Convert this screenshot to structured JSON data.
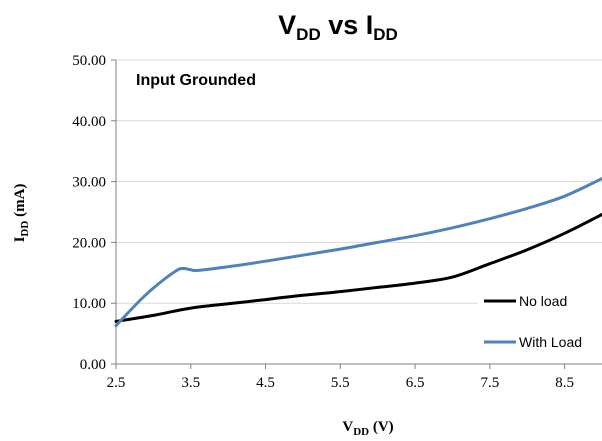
{
  "chart_data": {
    "type": "line",
    "title": {
      "main_left": "V",
      "sub_left": "DD",
      "middle": " vs I",
      "sub_right": "DD"
    },
    "xlabel": {
      "main": "V",
      "sub": "DD",
      "rest": " (V)"
    },
    "ylabel": {
      "main": "I",
      "sub": "DD",
      "rest": " (mA)"
    },
    "annotation": "Input Grounded",
    "xlim": [
      2.5,
      9.0
    ],
    "ylim": [
      0,
      50
    ],
    "x_ticks": [
      2.5,
      3.5,
      4.5,
      5.5,
      6.5,
      7.5,
      8.5
    ],
    "x_tick_labels": [
      "2.5",
      "3.5",
      "4.5",
      "5.5",
      "6.5",
      "7.5",
      "8.5"
    ],
    "y_ticks": [
      0,
      10,
      20,
      30,
      40,
      50
    ],
    "y_tick_labels": [
      "0.00",
      "10.00",
      "20.00",
      "30.00",
      "40.00",
      "50.00"
    ],
    "grid": true,
    "legend_placement": "bottom-right",
    "series": [
      {
        "name": "No load",
        "color": "#000000",
        "x": [
          2.5,
          3.0,
          3.5,
          4.0,
          4.5,
          5.0,
          5.5,
          6.0,
          6.5,
          7.0,
          7.5,
          8.0,
          8.5,
          9.0
        ],
        "y": [
          7.0,
          8.0,
          9.2,
          9.9,
          10.6,
          11.3,
          11.9,
          12.6,
          13.3,
          14.3,
          16.5,
          18.8,
          21.5,
          24.6
        ]
      },
      {
        "name": "With Load",
        "color": "#4f81bd",
        "x": [
          2.5,
          2.8,
          3.0,
          3.3,
          3.4,
          3.5,
          3.6,
          4.0,
          4.5,
          5.0,
          5.5,
          6.0,
          6.5,
          7.0,
          7.5,
          8.0,
          8.5,
          9.0
        ],
        "y": [
          6.3,
          10.2,
          12.5,
          15.3,
          15.7,
          15.5,
          15.4,
          16.0,
          16.9,
          17.9,
          18.9,
          20.0,
          21.1,
          22.4,
          23.9,
          25.6,
          27.6,
          30.5
        ]
      }
    ]
  }
}
